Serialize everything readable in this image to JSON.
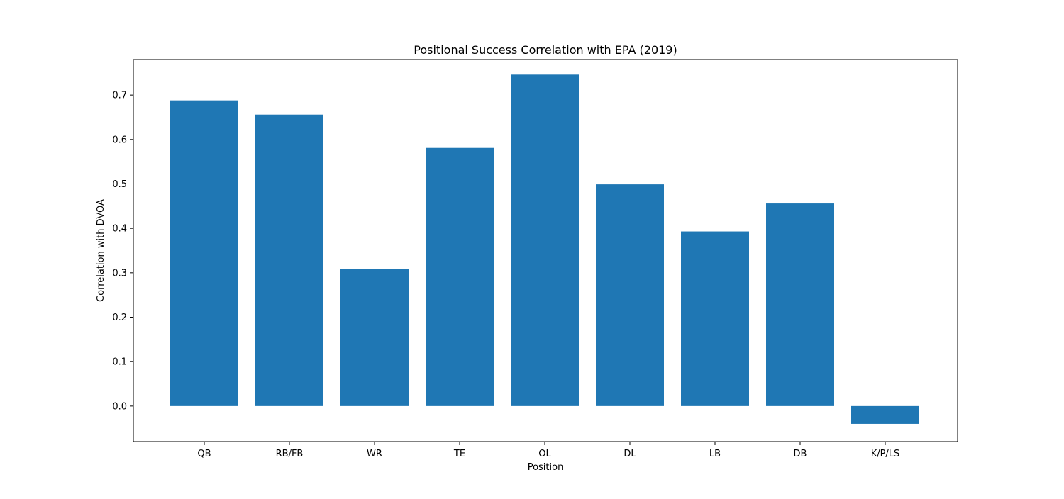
{
  "chart_data": {
    "type": "bar",
    "title": "Positional Success Correlation with EPA (2019)",
    "xlabel": "Position",
    "ylabel": "Correlation with DVOA",
    "categories": [
      "QB",
      "RB/FB",
      "WR",
      "TE",
      "OL",
      "DL",
      "LB",
      "DB",
      "K/P/LS"
    ],
    "values": [
      0.688,
      0.656,
      0.309,
      0.581,
      0.746,
      0.499,
      0.393,
      0.456,
      -0.04
    ],
    "ylim": [
      -0.08,
      0.78
    ],
    "yticks": [
      0.0,
      0.1,
      0.2,
      0.3,
      0.4,
      0.5,
      0.6,
      0.7
    ],
    "ytick_labels": [
      "0.0",
      "0.1",
      "0.2",
      "0.3",
      "0.4",
      "0.5",
      "0.6",
      "0.7"
    ],
    "bar_color": "#1f77b4",
    "grid": false,
    "legend": false
  }
}
